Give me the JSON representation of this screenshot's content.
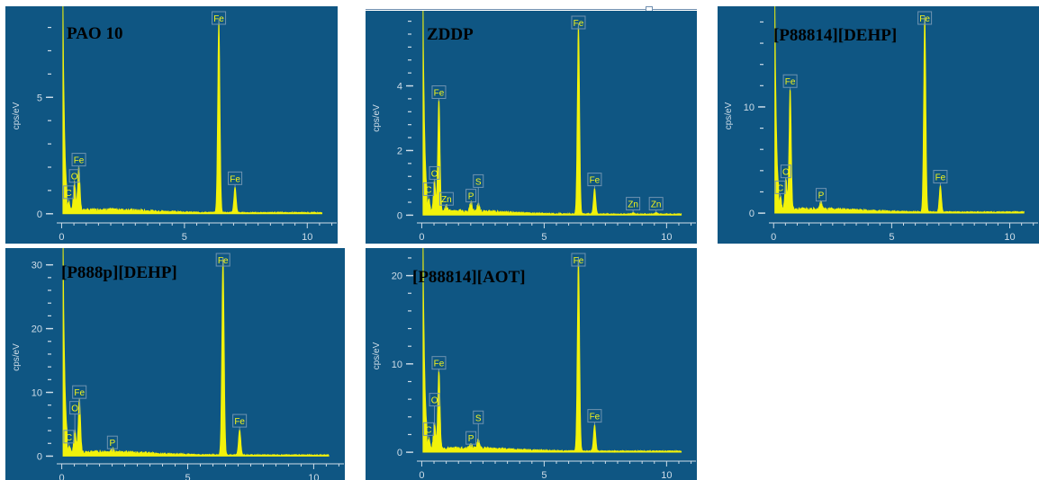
{
  "theme": {
    "panel_bg": "#0f5683",
    "spectrum": "#f2f20a",
    "axis": "#cfdde8",
    "label_text": "#f5f51a",
    "label_box": "#6f93b0"
  },
  "chart_data": [
    {
      "type": "line",
      "title": "PAO 10",
      "ylabel": "cps/eV",
      "xlim": [
        -0.2,
        11.2
      ],
      "ylim": [
        -0.2,
        8.6
      ],
      "xticks": [
        "0",
        "5",
        "10"
      ],
      "yticks": [
        "0",
        "5"
      ],
      "peaks": [
        {
          "label": "C",
          "x": 0.28,
          "y": 0.5
        },
        {
          "label": "O",
          "x": 0.52,
          "y": 1.2
        },
        {
          "label": "Fe",
          "x": 0.7,
          "y": 1.9
        },
        {
          "label": "Fe",
          "x": 6.4,
          "y": 8.3
        },
        {
          "label": "Fe",
          "x": 7.06,
          "y": 1.1
        }
      ]
    },
    {
      "type": "line",
      "title": "ZDDP",
      "ylabel": "cps/eV",
      "xlim": [
        -0.2,
        11.2
      ],
      "ylim": [
        -0.1,
        6.1
      ],
      "xticks": [
        "0",
        "5",
        "10"
      ],
      "yticks": [
        "0",
        "2",
        "4"
      ],
      "peaks": [
        {
          "label": "C",
          "x": 0.28,
          "y": 0.5
        },
        {
          "label": "O",
          "x": 0.52,
          "y": 1.0
        },
        {
          "label": "Zn",
          "x": 1.01,
          "y": 0.2
        },
        {
          "label": "Fe",
          "x": 0.7,
          "y": 3.5
        },
        {
          "label": "P",
          "x": 2.01,
          "y": 0.3
        },
        {
          "label": "S",
          "x": 2.31,
          "y": 0.25
        },
        {
          "label": "Fe",
          "x": 6.4,
          "y": 5.9
        },
        {
          "label": "Fe",
          "x": 7.06,
          "y": 0.8
        },
        {
          "label": "Zn",
          "x": 8.63,
          "y": 0.05
        },
        {
          "label": "Zn",
          "x": 9.57,
          "y": 0.05
        }
      ]
    },
    {
      "type": "line",
      "title": "[P88814][DEHP]",
      "ylabel": "cps/eV",
      "xlim": [
        -0.2,
        11.2
      ],
      "ylim": [
        -0.5,
        18.8
      ],
      "xticks": [
        "0",
        "5",
        "10"
      ],
      "yticks": [
        "0",
        "10"
      ],
      "peaks": [
        {
          "label": "C",
          "x": 0.28,
          "y": 1.5
        },
        {
          "label": "O",
          "x": 0.52,
          "y": 3.0
        },
        {
          "label": "Fe",
          "x": 0.7,
          "y": 11.5
        },
        {
          "label": "P",
          "x": 2.01,
          "y": 0.8
        },
        {
          "label": "Fe",
          "x": 6.4,
          "y": 18.5
        },
        {
          "label": "Fe",
          "x": 7.06,
          "y": 2.5
        }
      ]
    },
    {
      "type": "line",
      "title": "[P888p][DEHP]",
      "ylabel": "cps/eV",
      "xlim": [
        -0.2,
        11.2
      ],
      "ylim": [
        -0.5,
        31.5
      ],
      "xticks": [
        "0",
        "5",
        "10"
      ],
      "yticks": [
        "0",
        "10",
        "20",
        "30"
      ],
      "peaks": [
        {
          "label": "C",
          "x": 0.28,
          "y": 1.5
        },
        {
          "label": "O",
          "x": 0.52,
          "y": 3.5
        },
        {
          "label": "Fe",
          "x": 0.7,
          "y": 8.5
        },
        {
          "label": "P",
          "x": 2.01,
          "y": 0.6
        },
        {
          "label": "Fe",
          "x": 6.4,
          "y": 31.0
        },
        {
          "label": "Fe",
          "x": 7.06,
          "y": 4.0
        }
      ]
    },
    {
      "type": "line",
      "title": "[P88814][AOT]",
      "ylabel": "cps/eV",
      "xlim": [
        -0.2,
        11.2
      ],
      "ylim": [
        -0.5,
        22.3
      ],
      "xticks": [
        "0",
        "5",
        "10"
      ],
      "yticks": [
        "0",
        "10",
        "20"
      ],
      "peaks": [
        {
          "label": "C",
          "x": 0.28,
          "y": 1.5
        },
        {
          "label": "O",
          "x": 0.52,
          "y": 3.0
        },
        {
          "label": "Fe",
          "x": 0.7,
          "y": 9.0
        },
        {
          "label": "P",
          "x": 2.01,
          "y": 0.5
        },
        {
          "label": "S",
          "x": 2.31,
          "y": 1.0
        },
        {
          "label": "Fe",
          "x": 6.4,
          "y": 22.0
        },
        {
          "label": "Fe",
          "x": 7.06,
          "y": 3.0
        }
      ]
    }
  ]
}
